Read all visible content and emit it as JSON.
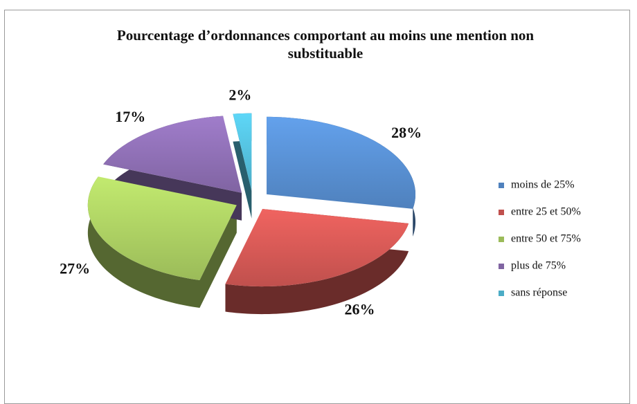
{
  "chart_data": {
    "type": "pie",
    "title": "Pourcentage d’ordonnances comportant au moins une mention non substituable",
    "categories": [
      "moins de 25%",
      "entre 25 et 50%",
      "entre 50 et 75%",
      "plus de 75%",
      "sans réponse"
    ],
    "values": [
      28,
      26,
      27,
      17,
      2
    ],
    "value_labels": [
      "28%",
      "26%",
      "27%",
      "17%",
      "2%"
    ],
    "colors": [
      "#4f81bd",
      "#c0504d",
      "#9bbb59",
      "#8064a2",
      "#4bacc6"
    ],
    "legend": "right"
  }
}
